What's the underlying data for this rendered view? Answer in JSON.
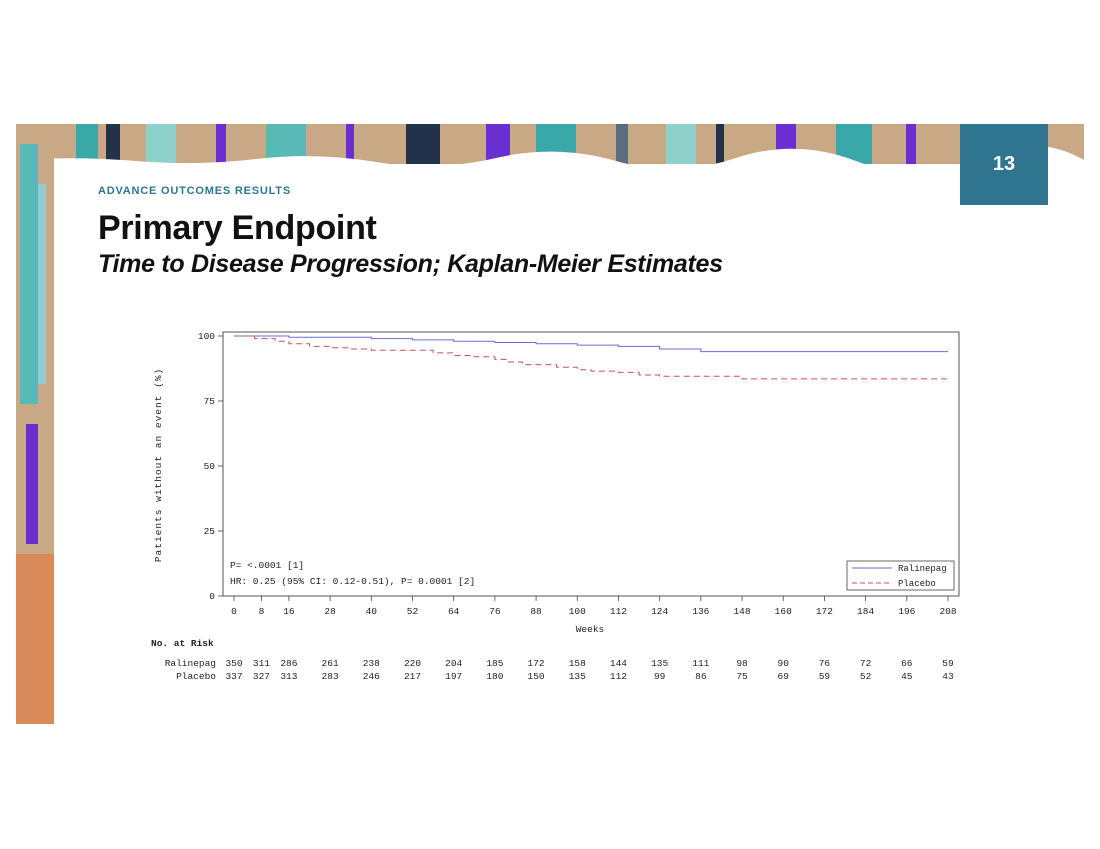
{
  "slide": {
    "page_number": "13",
    "eyebrow": "ADVANCE OUTCOMES RESULTS",
    "title": "Primary Endpoint",
    "subtitle": "Time to Disease Progression; Kaplan-Meier Estimates"
  },
  "colors": {
    "accent": "#2f7590",
    "ralinepag": "#6b6bd6",
    "placebo": "#c8505a"
  },
  "chart_data": {
    "type": "line",
    "title": "",
    "xlabel": "Weeks",
    "ylabel": "Patients without an event (%)",
    "xlim": [
      0,
      208
    ],
    "ylim": [
      0,
      100
    ],
    "x_ticks": [
      "0",
      "8",
      "16",
      "28",
      "40",
      "52",
      "64",
      "76",
      "88",
      "100",
      "112",
      "124",
      "136",
      "148",
      "160",
      "172",
      "184",
      "196",
      "208"
    ],
    "y_ticks": [
      "0",
      "25",
      "50",
      "75",
      "100"
    ],
    "annotations": [
      "P= <.0001 [1]",
      "HR: 0.25 (95% CI: 0.12-0.51), P= 0.0001 [2]"
    ],
    "legend_position": "bottom-right",
    "series": [
      {
        "name": "Ralinepag",
        "style": "solid",
        "x": [
          0,
          16,
          40,
          52,
          64,
          76,
          88,
          100,
          112,
          124,
          136,
          208
        ],
        "y": [
          100,
          99.5,
          99,
          98.5,
          98,
          97.5,
          97,
          96.5,
          96,
          95,
          94,
          94
        ]
      },
      {
        "name": "Placebo",
        "style": "dashed",
        "x": [
          0,
          6,
          12,
          16,
          22,
          28,
          34,
          40,
          52,
          58,
          64,
          70,
          76,
          80,
          84,
          88,
          94,
          100,
          104,
          112,
          118,
          124,
          148,
          208
        ],
        "y": [
          100,
          99,
          98,
          97,
          96,
          95.5,
          95,
          94.5,
          94.5,
          93.5,
          92.5,
          92,
          91,
          90,
          89,
          89,
          88,
          87,
          86.5,
          86,
          85,
          84.5,
          83.5,
          83.5
        ]
      }
    ],
    "risk_table": {
      "header": "No. at Risk",
      "rows": [
        {
          "label": "Ralinepag",
          "values": [
            "350",
            "311",
            "286",
            "261",
            "238",
            "220",
            "204",
            "185",
            "172",
            "158",
            "144",
            "135",
            "111",
            "98",
            "90",
            "76",
            "72",
            "66",
            "59"
          ]
        },
        {
          "label": "Placebo",
          "values": [
            "337",
            "327",
            "313",
            "283",
            "246",
            "217",
            "197",
            "180",
            "150",
            "135",
            "112",
            "99",
            "86",
            "75",
            "69",
            "59",
            "52",
            "45",
            "43"
          ]
        }
      ]
    }
  }
}
